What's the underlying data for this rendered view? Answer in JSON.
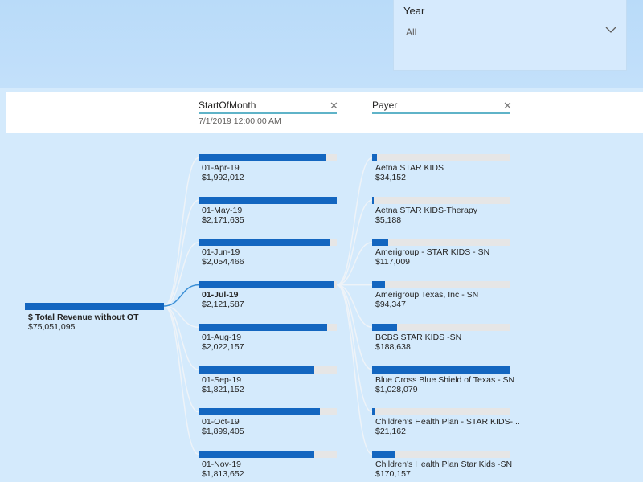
{
  "slicer": {
    "title": "Year",
    "value": "All",
    "chevron_icon": "chevron-down-icon"
  },
  "decomposition": {
    "root": {
      "label": "$ Total Revenue without OT",
      "value": "$75,051,095",
      "fill": 1.0
    },
    "levels": [
      {
        "title": "StartOfMonth",
        "subtitle": "7/1/2019 12:00:00 AM",
        "close_icon": "close-icon"
      },
      {
        "title": "Payer",
        "subtitle": "",
        "close_icon": "close-icon"
      }
    ],
    "months": [
      {
        "label": "01-Apr-19",
        "value": "$1,992,012",
        "fill": 0.917
      },
      {
        "label": "01-May-19",
        "value": "$2,171,635",
        "fill": 1.0
      },
      {
        "label": "01-Jun-19",
        "value": "$2,054,466",
        "fill": 0.946
      },
      {
        "label": "01-Jul-19",
        "value": "$2,121,587",
        "fill": 0.977,
        "selected": true
      },
      {
        "label": "01-Aug-19",
        "value": "$2,022,157",
        "fill": 0.931
      },
      {
        "label": "01-Sep-19",
        "value": "$1,821,152",
        "fill": 0.839
      },
      {
        "label": "01-Oct-19",
        "value": "$1,899,405",
        "fill": 0.875
      },
      {
        "label": "01-Nov-19",
        "value": "$1,813,652",
        "fill": 0.835
      }
    ],
    "payers": [
      {
        "label": "Aetna STAR KIDS",
        "value": "$34,152",
        "fill": 0.033
      },
      {
        "label": "Aetna STAR KIDS-Therapy",
        "value": "$5,188",
        "fill": 0.005
      },
      {
        "label": "Amerigroup - STAR KIDS - SN",
        "value": "$117,009",
        "fill": 0.114
      },
      {
        "label": "Amerigroup Texas, Inc - SN",
        "value": "$94,347",
        "fill": 0.092
      },
      {
        "label": "BCBS STAR KIDS -SN",
        "value": "$188,638",
        "fill": 0.183
      },
      {
        "label": "Blue Cross Blue Shield of Texas - SN",
        "value": "$1,028,079",
        "fill": 1.0
      },
      {
        "label": "Children's Health Plan - STAR KIDS-...",
        "value": "$21,162",
        "fill": 0.021
      },
      {
        "label": "Children's Health Plan Star Kids -SN",
        "value": "$170,157",
        "fill": 0.166
      }
    ],
    "colors": {
      "bar": "#1366c0",
      "track": "#e6e6e6",
      "link_selected": "#3a8fd6",
      "link_other": "#eef3f8"
    }
  }
}
